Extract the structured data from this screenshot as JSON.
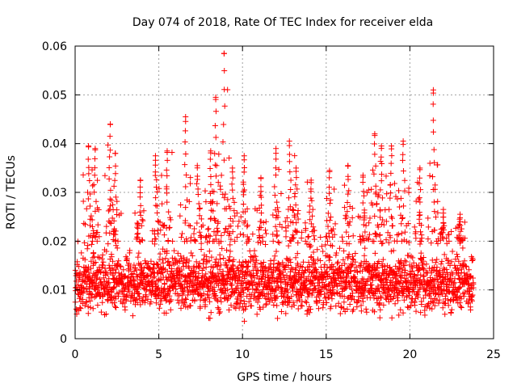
{
  "chart_data": {
    "type": "scatter",
    "title": "Day 074 of 2018, Rate Of TEC Index for receiver elda",
    "xlabel": "GPS time / hours",
    "ylabel": "ROTI / TECUs",
    "xlim": [
      0,
      25
    ],
    "ylim": [
      0,
      0.06
    ],
    "x_ticks": [
      0,
      5,
      10,
      15,
      20,
      25
    ],
    "x_tick_labels": [
      "0",
      "5",
      "10",
      "15",
      "20",
      "25"
    ],
    "y_ticks": [
      0,
      0.01,
      0.02,
      0.03,
      0.04,
      0.05,
      0.06
    ],
    "y_tick_labels": [
      "0",
      "0.01",
      "0.02",
      "0.03",
      "0.04",
      "0.05",
      "0.06"
    ],
    "grid": true,
    "marker": "plus",
    "series": [
      {
        "name": "ROTI",
        "color": "#ff0000",
        "x_range": [
          0,
          23.8
        ],
        "baseline_range": [
          0.003,
          0.02
        ],
        "typical_value": 0.011,
        "peaks": [
          {
            "x": 0.8,
            "y": 0.0395
          },
          {
            "x": 1.2,
            "y": 0.039
          },
          {
            "x": 2.1,
            "y": 0.044
          },
          {
            "x": 2.4,
            "y": 0.038
          },
          {
            "x": 3.9,
            "y": 0.0325
          },
          {
            "x": 4.8,
            "y": 0.0375
          },
          {
            "x": 5.5,
            "y": 0.0385
          },
          {
            "x": 6.6,
            "y": 0.0455
          },
          {
            "x": 7.3,
            "y": 0.0355
          },
          {
            "x": 8.1,
            "y": 0.0385
          },
          {
            "x": 8.4,
            "y": 0.0495
          },
          {
            "x": 8.9,
            "y": 0.0585
          },
          {
            "x": 9.4,
            "y": 0.035
          },
          {
            "x": 10.1,
            "y": 0.0375
          },
          {
            "x": 11.1,
            "y": 0.033
          },
          {
            "x": 12.0,
            "y": 0.039
          },
          {
            "x": 12.8,
            "y": 0.0405
          },
          {
            "x": 13.2,
            "y": 0.035
          },
          {
            "x": 14.1,
            "y": 0.0325
          },
          {
            "x": 15.2,
            "y": 0.0345
          },
          {
            "x": 16.3,
            "y": 0.0355
          },
          {
            "x": 17.2,
            "y": 0.0335
          },
          {
            "x": 17.9,
            "y": 0.042
          },
          {
            "x": 18.3,
            "y": 0.0395
          },
          {
            "x": 18.9,
            "y": 0.0395
          },
          {
            "x": 19.6,
            "y": 0.0405
          },
          {
            "x": 20.6,
            "y": 0.035
          },
          {
            "x": 21.4,
            "y": 0.051
          },
          {
            "x": 22.0,
            "y": 0.0265
          },
          {
            "x": 23.0,
            "y": 0.0255
          }
        ]
      }
    ]
  }
}
